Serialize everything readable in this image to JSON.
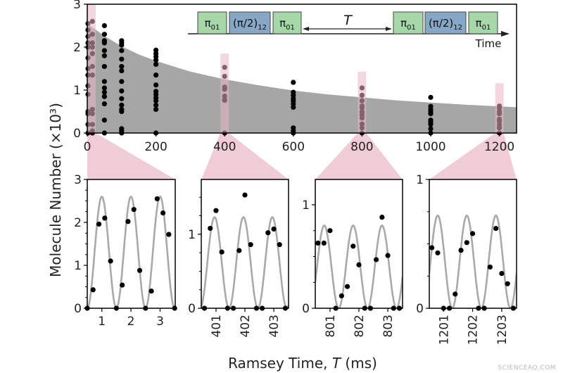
{
  "figure": {
    "ylabel": "Molecule Number (×10³)",
    "xlabel_prefix": "Ramsey Time, ",
    "xlabel_var": "T",
    "xlabel_suffix": " (ms)",
    "watermark": "SCIENCEAQ.COM",
    "highlight_color": "#e8b7c4"
  },
  "pulse_sequence": {
    "pulses_before": [
      {
        "base": "π",
        "sub": "01",
        "color": "#a6d7a8"
      },
      {
        "base": "(π/2)",
        "sub": "12",
        "color": "#86a7c6"
      },
      {
        "base": "π",
        "sub": "01",
        "color": "#a6d7a8"
      }
    ],
    "delay_label": "T",
    "pulses_after": [
      {
        "base": "π",
        "sub": "01",
        "color": "#a6d7a8"
      },
      {
        "base": "(π/2)",
        "sub": "12",
        "color": "#86a7c6"
      },
      {
        "base": "π",
        "sub": "01",
        "color": "#a6d7a8"
      }
    ],
    "time_label": "Time"
  },
  "chart_data": [
    {
      "type": "scatter",
      "xlim": [
        0,
        1250
      ],
      "ylim": [
        0,
        3
      ],
      "xticks": [
        0,
        200,
        400,
        600,
        800,
        1000,
        1200
      ],
      "yticks": [
        0,
        1,
        2,
        3
      ],
      "envelope": {
        "color": "#a6a6a6",
        "T": [
          0,
          50,
          100,
          150,
          200,
          300,
          400,
          500,
          600,
          700,
          800,
          900,
          1000,
          1100,
          1200,
          1250
        ],
        "values": [
          2.55,
          2.26,
          2.02,
          1.83,
          1.68,
          1.43,
          1.25,
          1.11,
          0.99,
          0.9,
          0.83,
          0.76,
          0.71,
          0.66,
          0.62,
          0.6
        ]
      },
      "highlighted_T": [
        0,
        400,
        800,
        1200
      ],
      "columns": [
        {
          "T": 0,
          "values": [
            2.55,
            2.4,
            2.25,
            2.1,
            2.0,
            1.75,
            1.5,
            1.35,
            1.1,
            0.9,
            0.5,
            0.45,
            0.2,
            0
          ]
        },
        {
          "T": 15,
          "values": [
            2.6,
            2.3,
            2.1,
            2.0,
            1.85,
            1.55,
            1.35,
            0.55,
            0.45,
            0.2,
            0.05,
            0
          ]
        },
        {
          "T": 50,
          "values": [
            2.5,
            2.3,
            2.15,
            2.1,
            1.92,
            1.8,
            1.55,
            1.2,
            1.05,
            0.95,
            0.85,
            0.68,
            0.3,
            0
          ]
        },
        {
          "T": 100,
          "values": [
            2.15,
            2.1,
            2.05,
            1.92,
            1.72,
            1.55,
            1.45,
            1.2,
            0.98,
            0.8,
            0.65,
            0.55,
            0.5,
            0.1,
            0.05,
            0
          ]
        },
        {
          "T": 200,
          "values": [
            1.93,
            1.85,
            1.78,
            1.7,
            1.6,
            1.35,
            1.12,
            0.97,
            0.9,
            0.82,
            0.75,
            0.65,
            0.55,
            0
          ]
        },
        {
          "T": 400,
          "values": [
            1.53,
            1.32,
            1.07,
            1.02,
            0.86,
            0.78,
            0.76,
            0
          ]
        },
        {
          "T": 600,
          "values": [
            1.18,
            0.95,
            0.88,
            0.8,
            0.75,
            0.68,
            0.6,
            0.12,
            0.05,
            0
          ]
        },
        {
          "T": 800,
          "values": [
            1.05,
            0.88,
            0.75,
            0.63,
            0.59,
            0.5,
            0.47,
            0.42,
            0.35,
            0.21,
            0.12,
            0
          ]
        },
        {
          "T": 1000,
          "values": [
            0.83,
            0.62,
            0.55,
            0.5,
            0.45,
            0.3,
            0.25,
            0.2,
            0.1,
            0
          ]
        },
        {
          "T": 1200,
          "values": [
            0.63,
            0.58,
            0.5,
            0.45,
            0.32,
            0.27,
            0.19,
            0.12,
            0
          ]
        }
      ]
    },
    {
      "type": "scatter",
      "xlim": [
        0.5,
        3.52
      ],
      "ylim": [
        0,
        3
      ],
      "xticks": [
        1,
        2,
        3
      ],
      "yticks": [
        0,
        1,
        2,
        3
      ],
      "yminor_step": 0.25,
      "fit": {
        "amplitude": 2.6,
        "period": 1,
        "peak": 1.0,
        "color": "#a9a9a9"
      },
      "x": [
        0.5,
        0.7,
        0.9,
        1.1,
        1.3,
        1.5,
        1.7,
        1.9,
        2.1,
        2.3,
        2.5,
        2.7,
        2.9,
        3.1,
        3.3,
        3.5
      ],
      "y": [
        0,
        0.43,
        1.96,
        2.1,
        1.1,
        0,
        0.54,
        2.02,
        2.3,
        0.88,
        0,
        0.4,
        2.55,
        2.22,
        1.72,
        0
      ]
    },
    {
      "type": "scatter",
      "xlim": [
        400.49,
        403.51
      ],
      "ylim": [
        0,
        1.74
      ],
      "xticks": [
        401,
        402,
        403
      ],
      "yticks": [
        0,
        1
      ],
      "yminor_step": 0.25,
      "fit": {
        "amplitude": 1.23,
        "period": 1,
        "peak": 400.95,
        "color": "#a9a9a9"
      },
      "x": [
        400.6,
        400.8,
        401.0,
        401.2,
        401.4,
        401.6,
        401.8,
        402.0,
        402.2,
        402.4,
        402.6,
        402.8,
        403.0,
        403.2,
        403.4
      ],
      "y": [
        0,
        1.08,
        1.32,
        0.76,
        0,
        0,
        0.78,
        1.53,
        0.86,
        0,
        0,
        1.02,
        1.07,
        0.86,
        0
      ]
    },
    {
      "type": "scatter",
      "xlim": [
        800.49,
        803.51
      ],
      "ylim": [
        0,
        1.245
      ],
      "xticks": [
        801,
        802,
        803
      ],
      "yticks": [
        0,
        1
      ],
      "yminor_step": 0.25,
      "fit": {
        "amplitude": 0.8,
        "period": 1,
        "peak": 800.8,
        "color": "#a9a9a9"
      },
      "x": [
        800.58,
        800.79,
        801.0,
        801.2,
        801.4,
        801.6,
        801.8,
        802.0,
        802.2,
        802.4,
        802.6,
        802.8,
        803.0,
        803.2,
        803.4
      ],
      "y": [
        0.63,
        0.63,
        0.75,
        0,
        0.12,
        0.21,
        0.6,
        0.42,
        0,
        0,
        0.47,
        0.88,
        0.51,
        0,
        0
      ]
    },
    {
      "type": "scatter",
      "xlim": [
        1200.51,
        1203.51
      ],
      "ylim": [
        0,
        1
      ],
      "xticks": [
        1201,
        1202,
        1203
      ],
      "yticks": [
        0,
        1
      ],
      "yminor_step": 0.25,
      "fit": {
        "amplitude": 0.72,
        "period": 1,
        "peak": 1200.8,
        "color": "#a9a9a9"
      },
      "x": [
        1200.6,
        1200.8,
        1201.0,
        1201.2,
        1201.4,
        1201.6,
        1201.8,
        1202.0,
        1202.2,
        1202.4,
        1202.6,
        1202.8,
        1203.0,
        1203.2,
        1203.4
      ],
      "y": [
        0.47,
        0.43,
        0,
        0,
        0.11,
        0.45,
        0.51,
        0.58,
        0,
        0,
        0.32,
        0.62,
        0.27,
        0.19,
        0
      ]
    }
  ]
}
